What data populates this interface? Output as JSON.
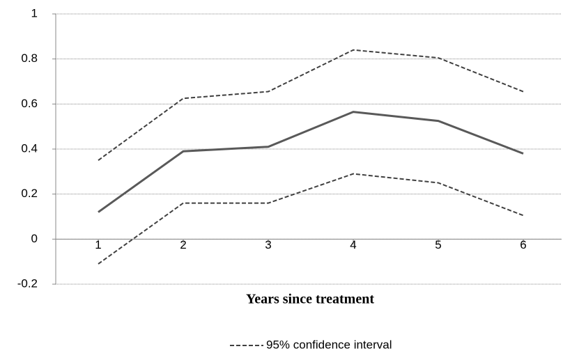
{
  "chart_data": {
    "type": "line",
    "x_label": "Years since treatment",
    "categories": [
      "1",
      "2",
      "3",
      "4",
      "5",
      "6"
    ],
    "series": [
      {
        "color": "#595959",
        "style": "solid",
        "values": [
          0.12,
          0.39,
          0.41,
          0.565,
          0.525,
          0.38
        ]
      },
      {
        "name": "95% confidence interval",
        "color": "#404040",
        "style": "dashed",
        "values": [
          0.35,
          0.625,
          0.655,
          0.84,
          0.805,
          0.655
        ]
      },
      {
        "color": "#404040",
        "style": "dashed",
        "values": [
          -0.11,
          0.16,
          0.16,
          0.29,
          0.25,
          0.105
        ]
      }
    ],
    "ylim": [
      -0.2,
      1
    ],
    "yticks": [
      -0.2,
      0,
      0.2,
      0.4,
      0.6,
      0.8,
      1
    ],
    "grid": true,
    "legend": "bottom"
  }
}
